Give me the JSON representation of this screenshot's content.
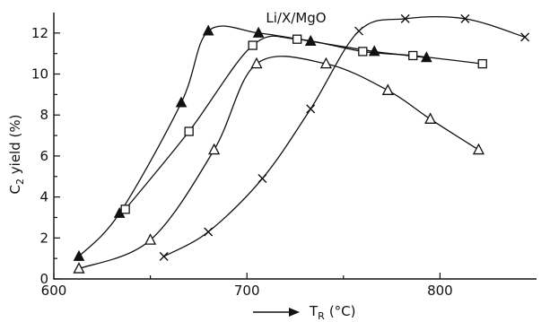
{
  "chart_data": {
    "type": "line",
    "title": "Li/X/MgO",
    "xlabel_sub": "R",
    "xlabel_unit": "(°C)",
    "xlabel_main": "T",
    "ylabel_main": "C",
    "ylabel_sub": "2",
    "ylabel_rest": " yield (%)",
    "xlim": [
      600,
      850
    ],
    "ylim": [
      0,
      13
    ],
    "x_ticks": [
      600,
      700,
      800
    ],
    "x_minor_ticks": [
      650,
      750
    ],
    "y_ticks": [
      0,
      2,
      4,
      6,
      8,
      10,
      12
    ],
    "y_minor_ticks": [
      1,
      3,
      5,
      7,
      9,
      11
    ],
    "grid": false,
    "series": [
      {
        "marker": "filled-triangle",
        "points": [
          [
            613,
            1.1
          ],
          [
            634,
            3.2
          ],
          [
            666,
            8.6
          ],
          [
            680,
            12.1
          ],
          [
            706,
            12.0
          ],
          [
            733,
            11.6
          ],
          [
            766,
            11.1
          ],
          [
            793,
            10.8
          ]
        ]
      },
      {
        "marker": "open-square",
        "points": [
          [
            637,
            3.4
          ],
          [
            670,
            7.2
          ],
          [
            703,
            11.4
          ],
          [
            726,
            11.7
          ],
          [
            760,
            11.1
          ],
          [
            786,
            10.9
          ],
          [
            822,
            10.5
          ]
        ]
      },
      {
        "marker": "open-triangle",
        "points": [
          [
            613,
            0.5
          ],
          [
            650,
            1.9
          ],
          [
            683,
            6.3
          ],
          [
            705,
            10.5
          ],
          [
            741,
            10.5
          ],
          [
            773,
            9.2
          ],
          [
            795,
            7.8
          ],
          [
            820,
            6.3
          ]
        ]
      },
      {
        "marker": "cross",
        "points": [
          [
            657,
            1.1
          ],
          [
            680,
            2.3
          ],
          [
            708,
            4.9
          ],
          [
            733,
            8.3
          ],
          [
            758,
            12.1
          ],
          [
            782,
            12.7
          ],
          [
            813,
            12.7
          ],
          [
            844,
            11.8
          ]
        ]
      }
    ]
  }
}
